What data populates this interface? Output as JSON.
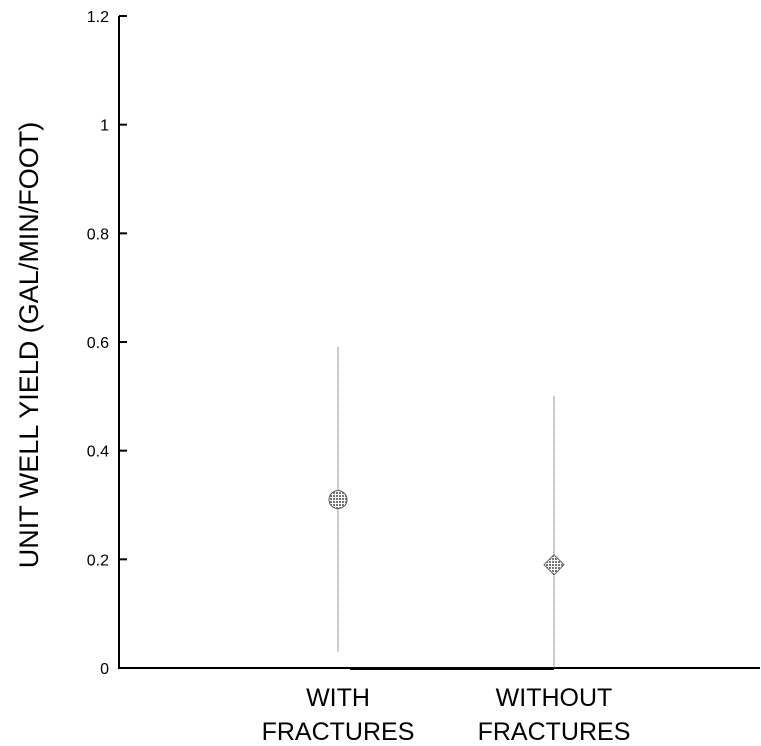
{
  "chart_data": {
    "type": "scatter",
    "title": "",
    "ylabel": "UNIT WELL YIELD (GAL/MIN/FOOT)",
    "xlabel": "",
    "ylim": [
      0,
      1.2
    ],
    "yticks": [
      0,
      0.2,
      0.4,
      0.6,
      0.8,
      1,
      1.2
    ],
    "ytick_labels": [
      "0",
      "0.2",
      "0.4",
      "0.6",
      "0.8",
      "1",
      "1.2"
    ],
    "categories": [
      {
        "line1": "WITH",
        "line2": "FRACTURES"
      },
      {
        "line1": "WITHOUT",
        "line2": "FRACTURES"
      }
    ],
    "series": [
      {
        "points": [
          {
            "category": "WITH FRACTURES",
            "y": 0.31,
            "low": 0.03,
            "high": 0.59
          },
          {
            "category": "WITHOUT FRACTURES",
            "y": 0.19,
            "low": 0.0,
            "high": 0.5
          }
        ]
      }
    ],
    "grid": false,
    "legend": "none",
    "marker_color": "#777777",
    "range_line_color": "#999999"
  }
}
